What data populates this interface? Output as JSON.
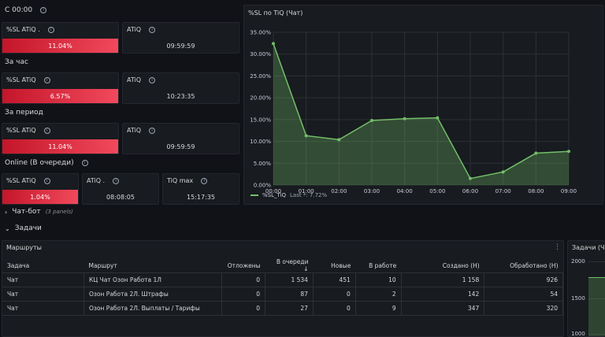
{
  "left": {
    "section1_title": "С 00:00",
    "section2_title": "За час",
    "section3_title": "За период",
    "section4_title": "Online (В очереди)",
    "s1_sl_title": "%SL ATiQ .",
    "s1_sl_value": "11.04%",
    "s1_atiq_title": "ATiQ",
    "s1_atiq_value": "09:59:59",
    "s2_sl_title": "%SL ATiQ",
    "s2_sl_value": "6.57%",
    "s2_atiq_title": "ATiQ",
    "s2_atiq_value": "10:23:35",
    "s3_sl_title": "%SL ATiQ",
    "s3_sl_value": "11.04%",
    "s3_atiq_title": "ATiQ",
    "s3_atiq_value": "09:59:59",
    "s4_sl_title": "%SL ATiQ",
    "s4_sl_value": "1.04%",
    "s4_atiq_title": "ATiQ .",
    "s4_atiq_value": "08:08:05",
    "s4_tiq_title": "TiQ max",
    "s4_tiq_value": "15:17:35"
  },
  "chart_panel": {
    "title": "%SL по TiQ (Чат)",
    "legend_label": "%SL_TiQ",
    "legend_last": "Last *: 7.72%"
  },
  "chart_data": {
    "type": "area",
    "x": [
      "00:00",
      "01:00",
      "02:00",
      "03:00",
      "04:00",
      "05:00",
      "06:00",
      "07:00",
      "08:00",
      "09:00"
    ],
    "series": [
      {
        "name": "%SL_TiQ",
        "values": [
          32.4,
          11.3,
          10.4,
          14.8,
          15.2,
          15.4,
          1.5,
          3.0,
          7.3,
          7.72
        ]
      }
    ],
    "ylim": [
      0,
      35
    ],
    "yticks": [
      "0.00%",
      "5.00%",
      "10.00%",
      "15.00%",
      "20.00%",
      "25.00%",
      "30.00%",
      "35.00%"
    ],
    "grid": true,
    "legend": "bottom-left",
    "color": "#73bf69"
  },
  "sections": {
    "chatbot": "Чат-бот",
    "chatbot_sub": "(3 panels)",
    "tasks": "Задачи"
  },
  "routes": {
    "title": "Маршруты",
    "headers": [
      "Задача",
      "Маршрут",
      "Отложены",
      "В очереди ↓",
      "Новые",
      "В работе",
      "Создано (Н)",
      "Обработано (Н)"
    ],
    "rows": [
      [
        "Чат",
        "КЦ Чат Озон Работа 1Л",
        "0",
        "1 534",
        "451",
        "10",
        "1 158",
        "926"
      ],
      [
        "Чат",
        "Озон Работа 2Л. Штрафы",
        "0",
        "87",
        "0",
        "2",
        "142",
        "54"
      ],
      [
        "Чат",
        "Озон Работа 2Л. Выплаты / Тарифы",
        "0",
        "27",
        "0",
        "9",
        "347",
        "320"
      ]
    ]
  },
  "right_panel": {
    "title": "Задачи (Ча",
    "yticks": [
      "2000",
      "1500",
      "1000"
    ]
  }
}
